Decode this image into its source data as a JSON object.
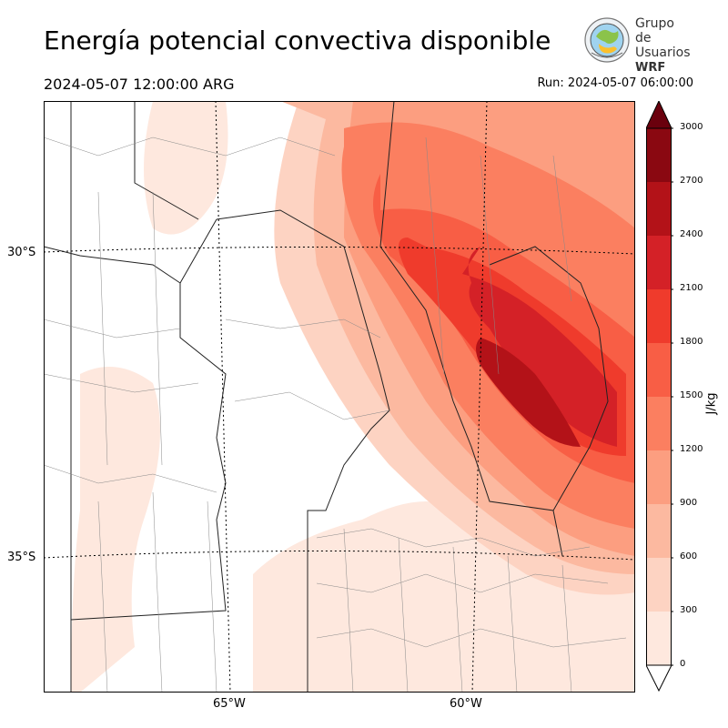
{
  "title": "Energía potencial convectiva disponible",
  "valid_time": "2024-05-07 12:00:00 ARG",
  "run_time": "Run: 2024-05-07 06:00:00",
  "logo": {
    "line1": "Grupo de",
    "line2": "Usuarios",
    "line3": "WRF"
  },
  "map": {
    "lat_labels": [
      "30°S",
      "35°S"
    ],
    "lon_labels": [
      "65°W",
      "60°W"
    ]
  },
  "colorbar": {
    "unit": "J/kg",
    "ticks": [
      "0",
      "300",
      "600",
      "900",
      "1200",
      "1500",
      "1800",
      "2100",
      "2400",
      "2700",
      "3000"
    ],
    "colors": [
      "#fee8de",
      "#fdd3c2",
      "#fcb9a0",
      "#fc9e80",
      "#fb7f60",
      "#f85e45",
      "#ef3b2c",
      "#d42127",
      "#b31218",
      "#8a0811",
      "#6a000d"
    ]
  }
}
